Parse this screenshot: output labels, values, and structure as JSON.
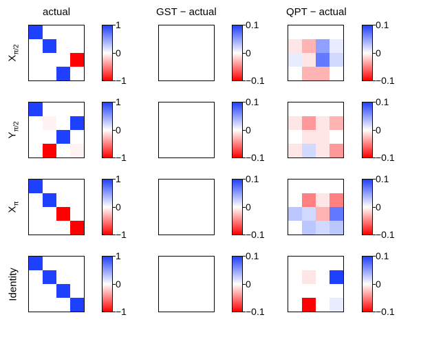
{
  "chart_data": {
    "type": "heatmap",
    "colormap": {
      "negative": "#ff0000",
      "zero": "#ffffff",
      "positive": "#2040ff"
    },
    "columns": [
      {
        "title": "actual",
        "colorbar": {
          "min": -1,
          "max": 1,
          "tick_labels": [
            "1",
            "0",
            "−1"
          ]
        }
      },
      {
        "title": "GST − actual",
        "colorbar": {
          "min": -0.1,
          "max": 0.1,
          "tick_labels": [
            "0.1",
            "0",
            "−0.1"
          ]
        }
      },
      {
        "title": "QPT − actual",
        "colorbar": {
          "min": -0.1,
          "max": 0.1,
          "tick_labels": [
            "0.1",
            "0",
            "−0.1"
          ]
        }
      }
    ],
    "rows": [
      {
        "label_main": "X",
        "label_sub": "π/2",
        "matrices": [
          [
            [
              1,
              0,
              0,
              0
            ],
            [
              0,
              1,
              0,
              0
            ],
            [
              0,
              0,
              0,
              -1
            ],
            [
              0,
              0,
              1,
              0
            ]
          ],
          [
            [
              0,
              0,
              0,
              0
            ],
            [
              0,
              0,
              0,
              0
            ],
            [
              0,
              0,
              0,
              0
            ],
            [
              0,
              0,
              0,
              0
            ]
          ],
          [
            [
              0,
              0,
              0,
              0
            ],
            [
              -0.01,
              -0.03,
              0.05,
              0.01
            ],
            [
              0.01,
              -0.01,
              0.07,
              0.02
            ],
            [
              0,
              -0.03,
              -0.03,
              0
            ]
          ]
        ]
      },
      {
        "label_main": "Y",
        "label_sub": "π/2",
        "matrices": [
          [
            [
              1,
              0,
              0,
              0
            ],
            [
              0,
              -0.05,
              0,
              1
            ],
            [
              0,
              0,
              1,
              0
            ],
            [
              0,
              -1,
              0,
              -0.05
            ]
          ],
          [
            [
              0,
              0,
              0,
              0
            ],
            [
              0,
              0,
              0,
              0
            ],
            [
              0,
              0,
              0,
              0
            ],
            [
              0,
              0,
              0,
              0
            ]
          ],
          [
            [
              0,
              0,
              0,
              0
            ],
            [
              -0.01,
              -0.04,
              -0.01,
              -0.03
            ],
            [
              0,
              -0.01,
              -0.01,
              0
            ],
            [
              -0.01,
              0.02,
              -0.01,
              -0.04
            ]
          ]
        ]
      },
      {
        "label_main": "X",
        "label_sub": "π",
        "matrices": [
          [
            [
              1,
              0,
              0,
              0
            ],
            [
              0,
              1,
              0,
              0
            ],
            [
              0,
              0,
              -1,
              0
            ],
            [
              0,
              0,
              0,
              -1
            ]
          ],
          [
            [
              0,
              0,
              0,
              0
            ],
            [
              0,
              0,
              0,
              0
            ],
            [
              0,
              0,
              0,
              0
            ],
            [
              0,
              0,
              0,
              0
            ]
          ],
          [
            [
              0,
              0,
              0,
              0
            ],
            [
              0,
              -0.05,
              -0.01,
              -0.05
            ],
            [
              0.03,
              0.02,
              -0.03,
              0.07
            ],
            [
              0,
              0.03,
              0.02,
              0.03
            ]
          ]
        ]
      },
      {
        "label_main": "Identity",
        "label_sub": "",
        "matrices": [
          [
            [
              1,
              0,
              0,
              0
            ],
            [
              0,
              1,
              0,
              0
            ],
            [
              0,
              0,
              1,
              0
            ],
            [
              0,
              0,
              0,
              1
            ]
          ],
          [
            [
              0,
              0,
              0,
              0
            ],
            [
              0,
              0,
              0,
              0
            ],
            [
              0,
              0,
              0,
              0
            ],
            [
              0,
              0,
              0,
              0
            ]
          ],
          [
            [
              0,
              0,
              0,
              0
            ],
            [
              0,
              -0.01,
              0,
              0.1
            ],
            [
              0,
              0,
              0,
              0
            ],
            [
              0,
              -0.1,
              0,
              0.01
            ]
          ]
        ]
      }
    ]
  }
}
